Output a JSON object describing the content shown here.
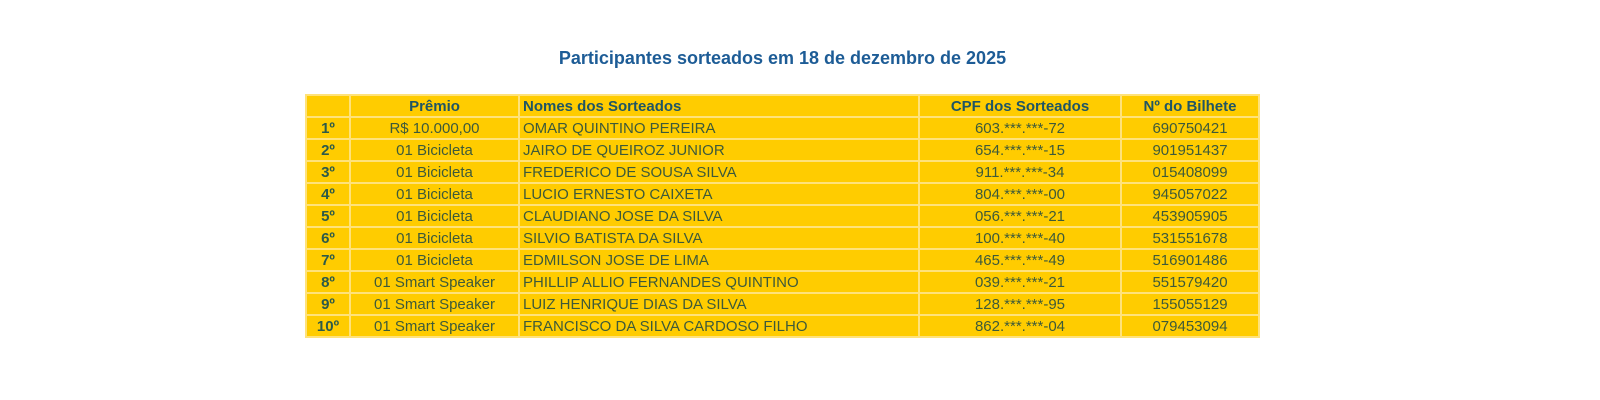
{
  "title": "Participantes sorteados em 18 de dezembro de 2025",
  "headers": {
    "rank": "",
    "prize": "Prêmio",
    "name": "Nomes dos Sorteados",
    "cpf": "CPF dos Sorteados",
    "ticket": "Nº do Bilhete"
  },
  "rows": [
    {
      "rank": "1º",
      "prize": "R$ 10.000,00",
      "name": "OMAR QUINTINO PEREIRA",
      "cpf": "603.***.***-72",
      "ticket": "690750421"
    },
    {
      "rank": "2º",
      "prize": "01 Bicicleta",
      "name": "JAIRO DE QUEIROZ JUNIOR",
      "cpf": "654.***.***-15",
      "ticket": "901951437"
    },
    {
      "rank": "3º",
      "prize": "01 Bicicleta",
      "name": "FREDERICO DE SOUSA SILVA",
      "cpf": "911.***.***-34",
      "ticket": "015408099"
    },
    {
      "rank": "4º",
      "prize": "01 Bicicleta",
      "name": "LUCIO ERNESTO CAIXETA",
      "cpf": "804.***.***-00",
      "ticket": "945057022"
    },
    {
      "rank": "5º",
      "prize": "01 Bicicleta",
      "name": "CLAUDIANO JOSE DA SILVA",
      "cpf": "056.***.***-21",
      "ticket": "453905905"
    },
    {
      "rank": "6º",
      "prize": "01 Bicicleta",
      "name": "SILVIO BATISTA DA SILVA",
      "cpf": "100.***.***-40",
      "ticket": "531551678"
    },
    {
      "rank": "7º",
      "prize": "01 Bicicleta",
      "name": "EDMILSON JOSE DE LIMA",
      "cpf": "465.***.***-49",
      "ticket": "516901486"
    },
    {
      "rank": "8º",
      "prize": "01 Smart Speaker",
      "name": "PHILLIP ALLIO FERNANDES QUINTINO",
      "cpf": "039.***.***-21",
      "ticket": "551579420"
    },
    {
      "rank": "9º",
      "prize": "01 Smart Speaker",
      "name": "LUIZ HENRIQUE DIAS DA SILVA",
      "cpf": "128.***.***-95",
      "ticket": "155055129"
    },
    {
      "rank": "10º",
      "prize": "01 Smart Speaker",
      "name": "FRANCISCO DA SILVA CARDOSO FILHO",
      "cpf": "862.***.***-04",
      "ticket": "079453094"
    }
  ],
  "colors": {
    "cell": "#ffcc00",
    "title": "#1d5c96",
    "text": "#3d5a3a"
  }
}
